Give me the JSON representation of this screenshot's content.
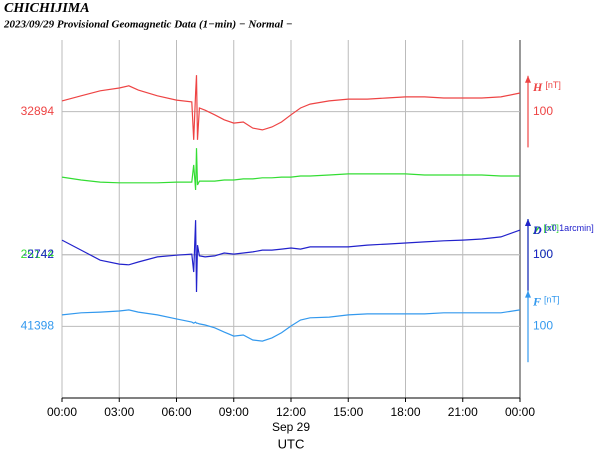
{
  "chart_data": {
    "type": "line",
    "title": "CHICHIJIMA",
    "subtitle": "2023/09/29  Provisional Geomagnetic Data (1−min)  − Normal −",
    "x": [
      0,
      1,
      2,
      3,
      3.5,
      4,
      5,
      6,
      6.8,
      6.9,
      7.0,
      7.05,
      7.1,
      7.2,
      7.5,
      8,
      8.5,
      9,
      9.5,
      10,
      10.5,
      11,
      11.5,
      12,
      12.5,
      13,
      14,
      15,
      16,
      17,
      18,
      19,
      20,
      21,
      22,
      23,
      24
    ],
    "xlim": [
      0,
      24
    ],
    "xticks": [
      {
        "value": 0,
        "label": "00:00"
      },
      {
        "value": 3,
        "label": "03:00"
      },
      {
        "value": 6,
        "label": "06:00"
      },
      {
        "value": 9,
        "label": "09:00"
      },
      {
        "value": 12,
        "label": "12:00"
      },
      {
        "value": 15,
        "label": "15:00"
      },
      {
        "value": 18,
        "label": "18:00"
      },
      {
        "value": 21,
        "label": "21:00"
      },
      {
        "value": 24,
        "label": "00:00"
      }
    ],
    "xlabel": "Sep 29",
    "xtitle": "UTC",
    "grid": true,
    "series": [
      {
        "name": "H",
        "unit": "[nT]",
        "color": "#ee4444",
        "ylim": [
          32094,
          33094
        ],
        "yticks": [
          32894
        ],
        "scale": 100,
        "values": [
          32924,
          32938,
          32952,
          32960,
          32966,
          32954,
          32938,
          32926,
          32921,
          32815,
          32946,
          32996,
          32815,
          32904,
          32898,
          32885,
          32871,
          32862,
          32865,
          32848,
          32843,
          32851,
          32865,
          32885,
          32904,
          32915,
          32924,
          32929,
          32929,
          32932,
          32935,
          32935,
          32932,
          32932,
          32932,
          32935,
          32946
        ]
      },
      {
        "name": "Z",
        "unit": "[nT]",
        "color": "#33dd33",
        "ylim": [
          24744,
          25744
        ],
        "yticks": [
          25144
        ],
        "scale": 100,
        "values": [
          25361,
          25353,
          25347,
          25345,
          25345,
          25345,
          25345,
          25347,
          25347,
          25395,
          25325,
          25442,
          25339,
          25350,
          25350,
          25350,
          25353,
          25353,
          25356,
          25356,
          25359,
          25359,
          25361,
          25361,
          25364,
          25364,
          25367,
          25370,
          25370,
          25370,
          25370,
          25367,
          25367,
          25367,
          25367,
          25364,
          25364
        ]
      },
      {
        "name": "D",
        "unit": "[x0.1arcmin]",
        "color": "#2222cc",
        "ylim": [
          -3142,
          -2142
        ],
        "yticks": [
          -2742
        ],
        "scale": 100,
        "values": [
          -2701,
          -2729,
          -2757,
          -2768,
          -2770,
          -2762,
          -2748,
          -2743,
          -2740,
          -2790,
          -2645,
          -2846,
          -2715,
          -2745,
          -2748,
          -2745,
          -2737,
          -2740,
          -2737,
          -2734,
          -2729,
          -2729,
          -2726,
          -2723,
          -2726,
          -2720,
          -2720,
          -2720,
          -2715,
          -2712,
          -2709,
          -2706,
          -2703,
          -2701,
          -2698,
          -2692,
          -2673
        ]
      },
      {
        "name": "F",
        "unit": "[nT]",
        "color": "#3399ee",
        "ylim": [
          41198,
          42198
        ],
        "yticks": [
          41398
        ],
        "scale": 100,
        "values": [
          41430,
          41436,
          41438,
          41441,
          41444,
          41438,
          41430,
          41419,
          41410,
          41407,
          41410,
          41407,
          41407,
          41405,
          41402,
          41394,
          41382,
          41371,
          41374,
          41360,
          41357,
          41366,
          41380,
          41399,
          41416,
          41422,
          41424,
          41430,
          41433,
          41433,
          41433,
          41433,
          41436,
          41436,
          41436,
          41436,
          41444
        ]
      }
    ]
  }
}
